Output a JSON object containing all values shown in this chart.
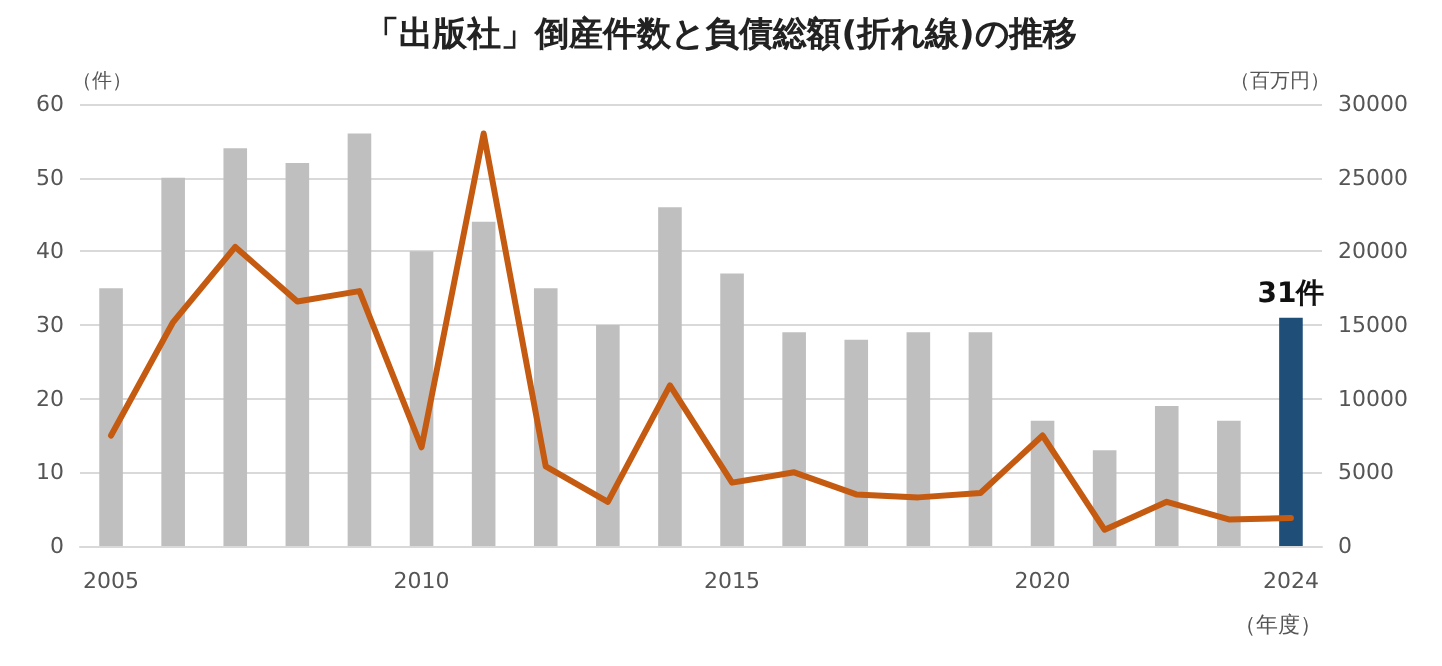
{
  "chart_data": {
    "type": "bar",
    "title": "「出版社」倒産件数と負債総額(折れ線)の推移",
    "ylabel": "（件）",
    "y2label": "（百万円）",
    "xlabel": "（年度）",
    "categories": [
      "2005",
      null,
      null,
      null,
      null,
      "2010",
      null,
      null,
      null,
      null,
      "2015",
      null,
      null,
      null,
      null,
      "2020",
      null,
      null,
      null,
      "2024"
    ],
    "series": [
      {
        "colors": [
          "#bfbfbf",
          "#bfbfbf",
          "#bfbfbf",
          "#bfbfbf",
          "#bfbfbf",
          "#bfbfbf",
          "#bfbfbf",
          "#bfbfbf",
          "#bfbfbf",
          "#bfbfbf",
          "#bfbfbf",
          "#bfbfbf",
          "#bfbfbf",
          "#bfbfbf",
          "#bfbfbf",
          "#bfbfbf",
          "#bfbfbf",
          "#bfbfbf",
          "#bfbfbf",
          "#1f4e79"
        ],
        "values": [
          35,
          50,
          54,
          52,
          56,
          40,
          44,
          35,
          30,
          46,
          37,
          29,
          28,
          29,
          29,
          17,
          13,
          19,
          17,
          31
        ],
        "value_labels": [
          null,
          null,
          null,
          null,
          null,
          null,
          null,
          null,
          null,
          null,
          null,
          null,
          null,
          null,
          null,
          null,
          null,
          null,
          null,
          "31件"
        ]
      },
      {
        "type": "line",
        "axis": "y2",
        "color": "#c55a11",
        "values": [
          7500,
          15200,
          20300,
          16600,
          17300,
          6700,
          28000,
          5400,
          3000,
          10900,
          4300,
          5000,
          3500,
          3300,
          3600,
          7500,
          1100,
          3000,
          1800,
          1900
        ]
      }
    ],
    "ylim": [
      0,
      60
    ],
    "yticks": [
      0,
      10,
      20,
      30,
      40,
      50,
      60
    ],
    "y2lim": [
      0,
      30000
    ],
    "y2ticks": [
      0,
      5000,
      10000,
      15000,
      20000,
      25000,
      30000
    ],
    "grid": "y",
    "marker": "none",
    "line_style": "solid"
  }
}
